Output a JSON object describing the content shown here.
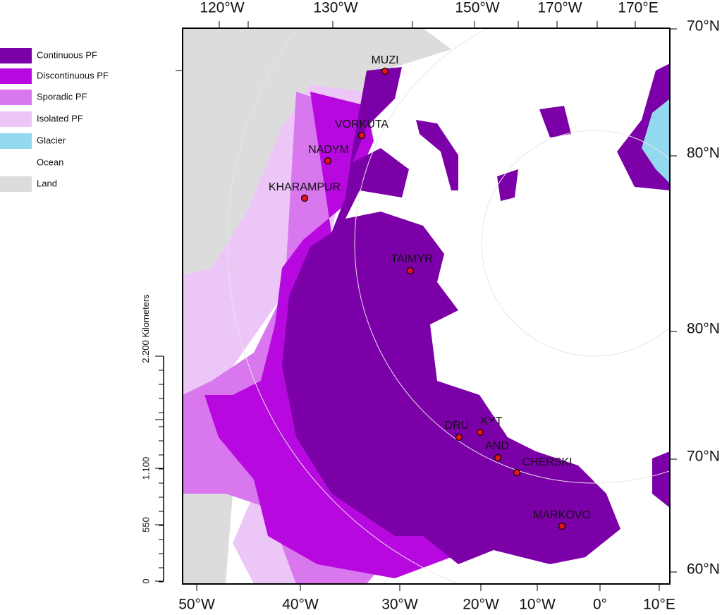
{
  "legend": [
    {
      "label": "Continuous PF",
      "color": "#7c00a8"
    },
    {
      "label": "Discontinuous PF",
      "color": "#b808e0"
    },
    {
      "label": "Sporadic PF",
      "color": "#d877ee"
    },
    {
      "label": "Isolated PF",
      "color": "#ecc6f6"
    },
    {
      "label": "Glacier",
      "color": "#92d8ee"
    },
    {
      "label": "Ocean",
      "color": "#ffffff"
    },
    {
      "label": "Land",
      "color": "#dcdcdc"
    }
  ],
  "top_labels": [
    "120°W",
    "130°W",
    "150°W",
    "170°W",
    "170°E"
  ],
  "bottom_labels": [
    "50°W",
    "40°W",
    "30°W",
    "20°W",
    "10°W",
    "0°",
    "10°E"
  ],
  "right_labels": [
    "70°N",
    "80°N",
    "80°N",
    "70°N",
    "60°N"
  ],
  "scale": {
    "labels": [
      "0",
      "550",
      "1.100",
      "2.200"
    ],
    "unit": "Kilometers"
  },
  "sites": [
    "MUZI",
    "VORKUTA",
    "NADYM",
    "KHARAMPUR",
    "TAIMYR",
    "DRU",
    "KYT",
    "AND",
    "CHERSKI",
    "MARKOVO"
  ]
}
